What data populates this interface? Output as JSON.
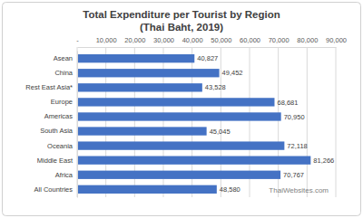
{
  "chart_data": {
    "type": "bar",
    "orientation": "horizontal",
    "title": "Total Expenditure per Tourist by Region",
    "subtitle": "(Thai Baht, 2019)",
    "categories": [
      "Asean",
      "China",
      "Rest East Asia*",
      "Europe",
      "Americas",
      "South Asia",
      "Oceania",
      "Middle East",
      "Africa",
      "All Countries"
    ],
    "values": [
      40827,
      49452,
      43528,
      68681,
      70950,
      45045,
      72118,
      81266,
      70767,
      48580
    ],
    "value_labels": [
      "40,827",
      "49,452",
      "43,528",
      "68,681",
      "70,950",
      "45,045",
      "72,118",
      "81,266",
      "70,767",
      "48,580"
    ],
    "data_labels": true,
    "color": "#4472c4",
    "xlim": [
      0,
      90000
    ],
    "xticks": [
      {
        "value": 0,
        "label": "-"
      },
      {
        "value": 10000,
        "label": "10,000"
      },
      {
        "value": 20000,
        "label": "20,000"
      },
      {
        "value": 30000,
        "label": "30,000"
      },
      {
        "value": 40000,
        "label": "40,000"
      },
      {
        "value": 50000,
        "label": "50,000"
      },
      {
        "value": 60000,
        "label": "60,000"
      },
      {
        "value": 70000,
        "label": "70,000"
      },
      {
        "value": 80000,
        "label": "80,000"
      },
      {
        "value": 90000,
        "label": "90,000"
      }
    ],
    "grid": true,
    "annotations": [
      "ThaiWebsites.com"
    ]
  }
}
